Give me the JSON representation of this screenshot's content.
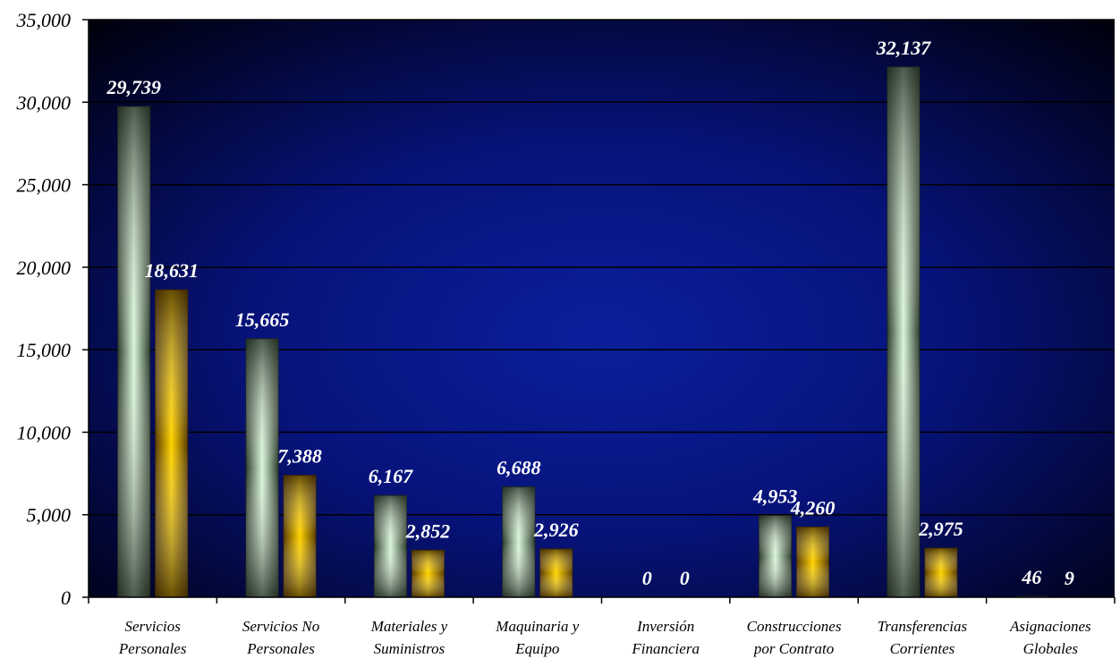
{
  "chart_data": {
    "type": "bar",
    "categories": [
      [
        "Servicios",
        "Personales"
      ],
      [
        "Servicios No",
        "Personales"
      ],
      [
        "Materiales y",
        "Suministros"
      ],
      [
        "Maquinaria y",
        "Equipo"
      ],
      [
        "Inversión",
        "Financiera"
      ],
      [
        "Construcciones",
        "por Contrato"
      ],
      [
        "Transferencias",
        "Corrientes"
      ],
      [
        "Asignaciones",
        "Globales"
      ]
    ],
    "series": [
      {
        "values": [
          29739,
          15665,
          6167,
          6688,
          0,
          4953,
          32137,
          46
        ]
      },
      {
        "values": [
          18631,
          7388,
          2852,
          2926,
          0,
          4260,
          2975,
          9
        ]
      }
    ],
    "data_labels": [
      [
        "29,739",
        "15,665",
        "6,167",
        "6,688",
        "0",
        "4,953",
        "32,137",
        "46"
      ],
      [
        "18,631",
        "7,388",
        "2,852",
        "2,926",
        "0",
        "4,260",
        "2,975",
        "9"
      ]
    ],
    "yticks": [
      "0",
      "5,000",
      "10,000",
      "15,000",
      "20,000",
      "25,000",
      "30,000",
      "35,000"
    ],
    "ylim": [
      0,
      35000
    ],
    "grid": true,
    "colors": {
      "series1": "#b8dcb8",
      "series2": "#f2c200",
      "background_center": "#0a1a8a",
      "background_edge": "#000010"
    }
  }
}
